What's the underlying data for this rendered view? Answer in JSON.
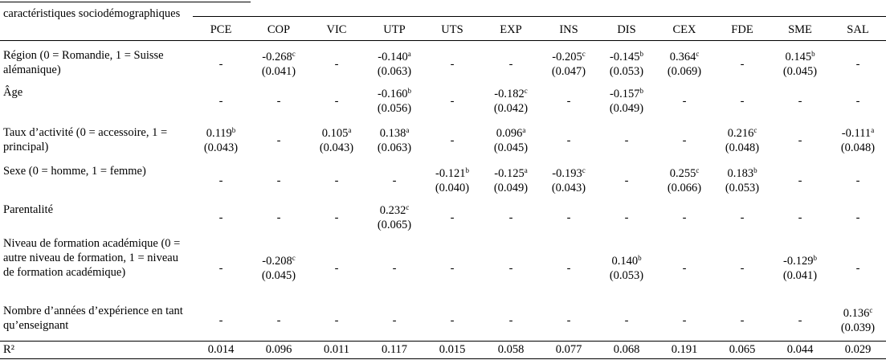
{
  "corner_header": "caractéristiques sociodémographiques",
  "columns": [
    "PCE",
    "COP",
    "VIC",
    "UTP",
    "UTS",
    "EXP",
    "INS",
    "DIS",
    "CEX",
    "FDE",
    "SME",
    "SAL"
  ],
  "rows": [
    {
      "label": "Région (0 = Romandie, 1 = Suisse alémanique)",
      "cells": [
        null,
        {
          "coef": "-0.268",
          "sig": "c",
          "se": "(0.041)"
        },
        null,
        {
          "coef": "-0.140",
          "sig": "a",
          "se": "(0.063)"
        },
        null,
        null,
        {
          "coef": "-0.205",
          "sig": "c",
          "se": "(0.047)"
        },
        {
          "coef": "-0.145",
          "sig": "b",
          "se": "(0.053)"
        },
        {
          "coef": "0.364",
          "sig": "c",
          "se": "(0.069)"
        },
        null,
        {
          "coef": "0.145",
          "sig": "b",
          "se": "(0.045)"
        },
        null
      ]
    },
    {
      "label": "Âge",
      "cells": [
        null,
        null,
        null,
        {
          "coef": "-0.160",
          "sig": "b",
          "se": "(0.056)"
        },
        null,
        {
          "coef": "-0.182",
          "sig": "c",
          "se": "(0.042)"
        },
        null,
        {
          "coef": "-0.157",
          "sig": "b",
          "se": "(0.049)"
        },
        null,
        null,
        null,
        null
      ]
    },
    {
      "label": "Taux d’activité (0 = accessoire, 1 = principal)",
      "cells": [
        {
          "coef": "0.119",
          "sig": "b",
          "se": "(0.043)"
        },
        null,
        {
          "coef": "0.105",
          "sig": "a",
          "se": "(0.043)"
        },
        {
          "coef": "0.138",
          "sig": "a",
          "se": "(0.063)"
        },
        null,
        {
          "coef": "0.096",
          "sig": "a",
          "se": "(0.045)"
        },
        null,
        null,
        null,
        {
          "coef": "0.216",
          "sig": "c",
          "se": "(0.048)"
        },
        null,
        {
          "coef": "-0.111",
          "sig": "a",
          "se": "(0.048)"
        }
      ]
    },
    {
      "label": "Sexe (0 = homme, 1 = femme)",
      "cells": [
        null,
        null,
        null,
        null,
        {
          "coef": "-0.121",
          "sig": "b",
          "se": "(0.040)"
        },
        {
          "coef": "-0.125",
          "sig": "a",
          "se": "(0.049)"
        },
        {
          "coef": "-0.193",
          "sig": "c",
          "se": "(0.043)"
        },
        null,
        {
          "coef": "0.255",
          "sig": "c",
          "se": "(0.066)"
        },
        {
          "coef": "0.183",
          "sig": "b",
          "se": "(0.053)"
        },
        null,
        null
      ]
    },
    {
      "label": "Parentalité",
      "cells": [
        null,
        null,
        null,
        {
          "coef": "0.232",
          "sig": "c",
          "se": "(0.065)"
        },
        null,
        null,
        null,
        null,
        null,
        null,
        null,
        null
      ]
    },
    {
      "label": "Niveau de formation académique (0 = autre niveau de formation, 1 = niveau de formation académique)",
      "cells": [
        null,
        {
          "coef": "-0.208",
          "sig": "c",
          "se": "(0.045)"
        },
        null,
        null,
        null,
        null,
        null,
        {
          "coef": "0.140",
          "sig": "b",
          "se": "(0.053)"
        },
        null,
        null,
        {
          "coef": "-0.129",
          "sig": "b",
          "se": "(0.041)"
        },
        null
      ]
    },
    {
      "label": "Nombre d’années d’expérience en tant qu’enseignant",
      "cells": [
        null,
        null,
        null,
        null,
        null,
        null,
        null,
        null,
        null,
        null,
        null,
        {
          "coef": "0.136",
          "sig": "c",
          "se": "(0.039)"
        }
      ]
    }
  ],
  "r2": {
    "label": "R²",
    "values": [
      "0.014",
      "0.096",
      "0.011",
      "0.117",
      "0.015",
      "0.058",
      "0.077",
      "0.068",
      "0.191",
      "0.065",
      "0.044",
      "0.029"
    ]
  },
  "empty_marker": "-"
}
